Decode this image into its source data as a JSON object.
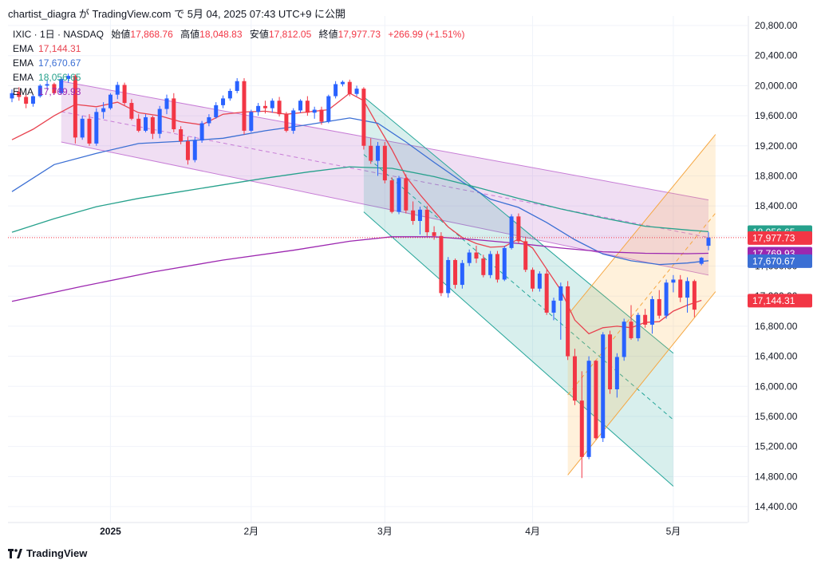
{
  "header": {
    "text": "chartist_diagra が TradingView.com で 5月 04, 2025 07:43 UTC+9 に公開"
  },
  "legend": {
    "symbol": "IXIC · 1日 · NASDAQ",
    "open_label": "始値",
    "open": "17,868.76",
    "high_label": "高値",
    "high": "18,048.83",
    "low_label": "安値",
    "low": "17,812.05",
    "close_label": "終値",
    "close": "17,977.73",
    "change": "+266.99 (+1.51%)",
    "ema": [
      {
        "label": "EMA",
        "value": "17,144.31",
        "color": "#e8424f"
      },
      {
        "label": "EMA",
        "value": "17,670.67",
        "color": "#3b6fd4"
      },
      {
        "label": "EMA",
        "value": "18,056.65",
        "color": "#26a18c"
      },
      {
        "label": "EMA",
        "value": "17,769.93",
        "color": "#9c27b0"
      }
    ]
  },
  "logo": {
    "text": "TradingView"
  },
  "chart_data": {
    "type": "candlestick",
    "y_ticks": [
      "20,800.00",
      "20,400.00",
      "20,000.00",
      "19,600.00",
      "19,200.00",
      "18,800.00",
      "18,400.00",
      "18,000.00",
      "17,600.00",
      "17,200.00",
      "16,800.00",
      "16,400.00",
      "16,000.00",
      "15,600.00",
      "15,200.00",
      "14,800.00",
      "14,400.00"
    ],
    "y_tick_values": [
      20800,
      20400,
      20000,
      19600,
      19200,
      18800,
      18400,
      18000,
      17600,
      17200,
      16800,
      16400,
      16000,
      15600,
      15200,
      14800,
      14400
    ],
    "ylim": [
      14200,
      20950
    ],
    "x_ticks": [
      {
        "label": "2025",
        "index": 14
      },
      {
        "label": "2月",
        "index": 34
      },
      {
        "label": "3月",
        "index": 53
      },
      {
        "label": "4月",
        "index": 74
      },
      {
        "label": "5月",
        "index": 94
      }
    ],
    "bar_count": 100,
    "price_labels": [
      {
        "value": 18056.65,
        "text": "18,056.65",
        "color": "#26a18c"
      },
      {
        "value": 17977.73,
        "text": "17,977.73",
        "color": "#f23645"
      },
      {
        "value": 17769.93,
        "text": "17,769.93",
        "color": "#9c27b0"
      },
      {
        "value": 17670.67,
        "text": "17,670.67",
        "color": "#3b6fd4"
      },
      {
        "value": 17144.31,
        "text": "17,144.31",
        "color": "#f23645"
      }
    ],
    "up_color": "#2962ff",
    "down_color": "#f23645",
    "candles": [
      [
        0,
        19830,
        19950,
        19780,
        19900
      ],
      [
        1,
        19920,
        19980,
        19800,
        19850
      ],
      [
        2,
        19850,
        19900,
        19700,
        19760
      ],
      [
        3,
        19760,
        19880,
        19720,
        19860
      ],
      [
        4,
        19860,
        20020,
        19840,
        20000
      ],
      [
        5,
        20000,
        20080,
        19950,
        20020
      ],
      [
        6,
        20020,
        20040,
        19880,
        19900
      ],
      [
        7,
        19900,
        20120,
        19880,
        20090
      ],
      [
        8,
        20090,
        20160,
        20040,
        20130
      ],
      [
        9,
        20130,
        20150,
        19230,
        19310
      ],
      [
        10,
        19310,
        19600,
        19280,
        19560
      ],
      [
        11,
        19560,
        19620,
        19200,
        19230
      ],
      [
        12,
        19230,
        19700,
        19200,
        19650
      ],
      [
        13,
        19650,
        19780,
        19560,
        19700
      ],
      [
        14,
        19700,
        19900,
        19680,
        19880
      ],
      [
        15,
        19880,
        20050,
        19820,
        20010
      ],
      [
        16,
        20010,
        20040,
        19740,
        19770
      ],
      [
        17,
        19770,
        19820,
        19540,
        19560
      ],
      [
        18,
        19560,
        19620,
        19380,
        19400
      ],
      [
        19,
        19400,
        19620,
        19380,
        19580
      ],
      [
        20,
        19580,
        19600,
        19290,
        19360
      ],
      [
        21,
        19360,
        19730,
        19300,
        19690
      ],
      [
        22,
        19690,
        19880,
        19620,
        19830
      ],
      [
        23,
        19830,
        19900,
        19380,
        19420
      ],
      [
        24,
        19420,
        19460,
        19220,
        19260
      ],
      [
        25,
        19260,
        19320,
        18950,
        19010
      ],
      [
        26,
        19010,
        19320,
        18980,
        19270
      ],
      [
        27,
        19270,
        19530,
        19240,
        19500
      ],
      [
        28,
        19500,
        19620,
        19460,
        19580
      ],
      [
        29,
        19580,
        19780,
        19560,
        19740
      ],
      [
        30,
        19740,
        19870,
        19700,
        19830
      ],
      [
        31,
        19830,
        19960,
        19800,
        19930
      ],
      [
        32,
        19930,
        20100,
        19900,
        20060
      ],
      [
        33,
        20060,
        20100,
        19350,
        19400
      ],
      [
        34,
        19400,
        19680,
        19380,
        19650
      ],
      [
        35,
        19650,
        19770,
        19600,
        19730
      ],
      [
        36,
        19730,
        19800,
        19630,
        19700
      ],
      [
        37,
        19700,
        19830,
        19640,
        19800
      ],
      [
        38,
        19800,
        19850,
        19590,
        19620
      ],
      [
        39,
        19620,
        19650,
        19380,
        19400
      ],
      [
        40,
        19400,
        19700,
        19360,
        19670
      ],
      [
        41,
        19670,
        19820,
        19640,
        19800
      ],
      [
        42,
        19800,
        19860,
        19600,
        19640
      ],
      [
        43,
        19640,
        19720,
        19560,
        19680
      ],
      [
        44,
        19680,
        19720,
        19480,
        19520
      ],
      [
        45,
        19520,
        19880,
        19500,
        19860
      ],
      [
        46,
        19860,
        20060,
        19830,
        20020
      ],
      [
        47,
        20020,
        20070,
        19990,
        20050
      ],
      [
        48,
        20050,
        20080,
        19860,
        19890
      ],
      [
        49,
        19890,
        20000,
        19860,
        19960
      ],
      [
        50,
        19960,
        19980,
        19150,
        19200
      ],
      [
        51,
        19200,
        19300,
        18960,
        19000
      ],
      [
        52,
        19000,
        19250,
        18800,
        19200
      ],
      [
        53,
        19200,
        19250,
        18700,
        18740
      ],
      [
        54,
        18740,
        18780,
        18300,
        18320
      ],
      [
        55,
        18320,
        18800,
        18290,
        18770
      ],
      [
        56,
        18770,
        18820,
        18300,
        18340
      ],
      [
        57,
        18340,
        18460,
        18150,
        18200
      ],
      [
        58,
        18200,
        18390,
        18020,
        18350
      ],
      [
        59,
        18350,
        18400,
        18000,
        18050
      ],
      [
        60,
        18050,
        18130,
        17950,
        18000
      ],
      [
        61,
        18000,
        18050,
        17200,
        17240
      ],
      [
        62,
        17240,
        17720,
        17180,
        17680
      ],
      [
        63,
        17680,
        17700,
        17300,
        17350
      ],
      [
        64,
        17350,
        17680,
        17300,
        17640
      ],
      [
        65,
        17640,
        17820,
        17600,
        17780
      ],
      [
        66,
        17780,
        17870,
        17640,
        17700
      ],
      [
        67,
        17700,
        17750,
        17450,
        17480
      ],
      [
        68,
        17480,
        17800,
        17440,
        17760
      ],
      [
        69,
        17760,
        17800,
        17380,
        17420
      ],
      [
        70,
        17420,
        17870,
        17400,
        17840
      ],
      [
        71,
        17840,
        18290,
        17820,
        18260
      ],
      [
        72,
        18260,
        18300,
        17900,
        17930
      ],
      [
        73,
        17930,
        17990,
        17520,
        17550
      ],
      [
        74,
        17550,
        17580,
        17260,
        17300
      ],
      [
        75,
        17300,
        17530,
        17260,
        17500
      ],
      [
        76,
        17500,
        17550,
        16950,
        16980
      ],
      [
        77,
        16980,
        17180,
        16880,
        17140
      ],
      [
        78,
        17140,
        17380,
        16620,
        17330
      ],
      [
        79,
        17330,
        17400,
        16350,
        16400
      ],
      [
        80,
        16400,
        16500,
        15750,
        15810
      ],
      [
        81,
        15810,
        16200,
        14780,
        15060
      ],
      [
        82,
        15060,
        16400,
        15030,
        16340
      ],
      [
        83,
        16340,
        16350,
        15290,
        15310
      ],
      [
        84,
        15310,
        16720,
        15260,
        16690
      ],
      [
        85,
        16690,
        16740,
        15900,
        15960
      ],
      [
        86,
        15960,
        16440,
        15850,
        16390
      ],
      [
        87,
        16390,
        16900,
        16340,
        16860
      ],
      [
        88,
        16860,
        17080,
        16620,
        16640
      ],
      [
        89,
        16640,
        16980,
        16600,
        16950
      ],
      [
        90,
        16950,
        17030,
        16780,
        16820
      ],
      [
        91,
        16820,
        17200,
        16700,
        17160
      ],
      [
        92,
        17160,
        17280,
        16900,
        16940
      ],
      [
        93,
        16940,
        17420,
        16900,
        17380
      ],
      [
        94,
        17380,
        17480,
        17250,
        17420
      ],
      [
        95,
        17420,
        17480,
        17120,
        17180
      ],
      [
        96,
        17180,
        17450,
        16980,
        17400
      ],
      [
        97,
        17400,
        17420,
        16920,
        17020
      ],
      [
        98,
        17630,
        17720,
        17610,
        17710
      ],
      [
        99,
        17870,
        18050,
        17810,
        17980
      ]
    ],
    "ema_series": [
      {
        "color": "#e8424f",
        "values": [
          [
            0,
            19280
          ],
          [
            3,
            19420
          ],
          [
            6,
            19600
          ],
          [
            9,
            19750
          ],
          [
            12,
            19720
          ],
          [
            15,
            19780
          ],
          [
            18,
            19640
          ],
          [
            21,
            19600
          ],
          [
            24,
            19520
          ],
          [
            27,
            19480
          ],
          [
            30,
            19620
          ],
          [
            33,
            19650
          ],
          [
            36,
            19660
          ],
          [
            39,
            19620
          ],
          [
            42,
            19650
          ],
          [
            45,
            19680
          ],
          [
            48,
            19900
          ],
          [
            50,
            19800
          ],
          [
            52,
            19470
          ],
          [
            54,
            19150
          ],
          [
            56,
            18790
          ],
          [
            58,
            18550
          ],
          [
            60,
            18330
          ],
          [
            62,
            18120
          ],
          [
            64,
            17980
          ],
          [
            66,
            17900
          ],
          [
            68,
            17850
          ],
          [
            70,
            17860
          ],
          [
            72,
            17960
          ],
          [
            74,
            17840
          ],
          [
            76,
            17560
          ],
          [
            78,
            17280
          ],
          [
            80,
            16880
          ],
          [
            82,
            16700
          ],
          [
            84,
            16780
          ],
          [
            86,
            16800
          ],
          [
            88,
            16780
          ],
          [
            90,
            16850
          ],
          [
            92,
            16860
          ],
          [
            94,
            17000
          ],
          [
            96,
            17080
          ],
          [
            98,
            17144
          ]
        ]
      },
      {
        "color": "#3b6fd4",
        "values": [
          [
            0,
            18590
          ],
          [
            6,
            18950
          ],
          [
            12,
            19100
          ],
          [
            18,
            19230
          ],
          [
            24,
            19260
          ],
          [
            30,
            19300
          ],
          [
            36,
            19400
          ],
          [
            42,
            19480
          ],
          [
            48,
            19570
          ],
          [
            52,
            19500
          ],
          [
            56,
            19250
          ],
          [
            60,
            18980
          ],
          [
            64,
            18720
          ],
          [
            68,
            18490
          ],
          [
            72,
            18380
          ],
          [
            76,
            18180
          ],
          [
            80,
            17950
          ],
          [
            84,
            17760
          ],
          [
            88,
            17670
          ],
          [
            92,
            17620
          ],
          [
            96,
            17640
          ],
          [
            99,
            17671
          ]
        ]
      },
      {
        "color": "#26a18c",
        "values": [
          [
            0,
            18050
          ],
          [
            6,
            18230
          ],
          [
            12,
            18390
          ],
          [
            18,
            18500
          ],
          [
            24,
            18590
          ],
          [
            30,
            18680
          ],
          [
            36,
            18770
          ],
          [
            42,
            18850
          ],
          [
            48,
            18920
          ],
          [
            54,
            18900
          ],
          [
            60,
            18790
          ],
          [
            66,
            18650
          ],
          [
            72,
            18500
          ],
          [
            78,
            18360
          ],
          [
            84,
            18240
          ],
          [
            90,
            18130
          ],
          [
            96,
            18080
          ],
          [
            99,
            18057
          ]
        ]
      },
      {
        "color": "#9c27b0",
        "values": [
          [
            0,
            17130
          ],
          [
            10,
            17330
          ],
          [
            20,
            17520
          ],
          [
            30,
            17680
          ],
          [
            40,
            17810
          ],
          [
            48,
            17930
          ],
          [
            54,
            17990
          ],
          [
            60,
            17990
          ],
          [
            66,
            17950
          ],
          [
            72,
            17900
          ],
          [
            78,
            17840
          ],
          [
            84,
            17790
          ],
          [
            90,
            17770
          ],
          [
            96,
            17765
          ],
          [
            99,
            17770
          ]
        ]
      }
    ],
    "channels": [
      {
        "fill": "rgba(186,104,200,0.22)",
        "stroke": "#c77dd6",
        "top": [
          [
            7,
            20060
          ],
          [
            99,
            18480
          ]
        ],
        "bottom": [
          [
            7,
            19250
          ],
          [
            99,
            17480
          ]
        ],
        "mid_dashed": true
      },
      {
        "fill": "rgba(38,166,154,0.18)",
        "stroke": "#26a69a",
        "top": [
          [
            50,
            19850
          ],
          [
            94,
            16440
          ]
        ],
        "bottom": [
          [
            50,
            18320
          ],
          [
            94,
            14670
          ]
        ],
        "mid_dashed": true
      },
      {
        "fill": "rgba(255,183,77,0.20)",
        "stroke": "#f5a742",
        "top": [
          [
            79,
            16950
          ],
          [
            100,
            19350
          ]
        ],
        "bottom": [
          [
            79,
            14820
          ],
          [
            100,
            17260
          ]
        ],
        "mid_dashed": true
      }
    ],
    "close_line": 17977.73
  }
}
